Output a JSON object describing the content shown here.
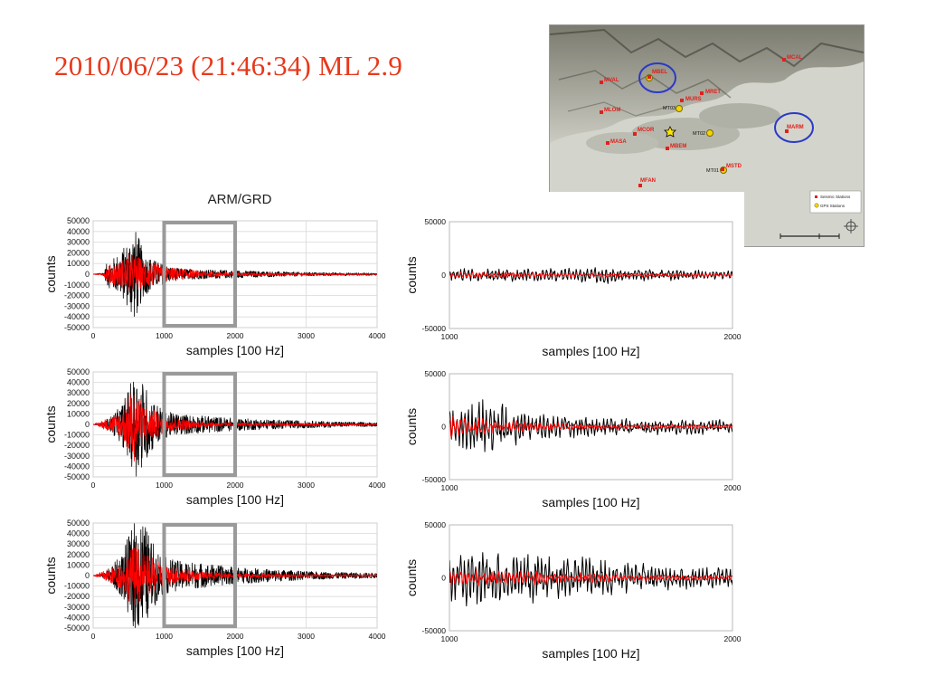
{
  "slide": {
    "title": "2010/06/23 (21:46:34) ML 2.9"
  },
  "map": {
    "stations": [
      {
        "id": "MBEL"
      },
      {
        "id": "MVAL"
      },
      {
        "id": "MLOM"
      },
      {
        "id": "MURS"
      },
      {
        "id": "MRET"
      },
      {
        "id": "MT03"
      },
      {
        "id": "MCOR"
      },
      {
        "id": "MASA"
      },
      {
        "id": "MBEM"
      },
      {
        "id": "MT02"
      },
      {
        "id": "MSTD"
      },
      {
        "id": "MT01"
      },
      {
        "id": "MFAN"
      },
      {
        "id": "MARM"
      },
      {
        "id": "MCAL"
      }
    ],
    "legend": {
      "seismic": "Seismic Stations",
      "gps": "GPS Stations"
    },
    "colors": {
      "seismic": "#e0201c",
      "gps": "#f2d600",
      "circle": "#2a39c8",
      "epicenter": "#ffe600"
    }
  },
  "chart_data": [
    {
      "type": "line",
      "panel": "left-1",
      "title": "ARM/GRD",
      "xlabel": "samples [100 Hz]",
      "ylabel": "counts",
      "xlim": [
        0,
        4000
      ],
      "ylim": [
        -50000,
        50000
      ],
      "xticks": [
        0,
        1000,
        2000,
        3000,
        4000
      ],
      "yticks": [
        50000,
        40000,
        30000,
        20000,
        10000,
        0,
        -10000,
        -20000,
        -30000,
        -40000,
        -50000
      ],
      "ytick_labels": [
        "50000",
        "40000",
        "30000",
        "20000",
        "10000",
        "0",
        "-10000",
        "-20000",
        "-30000",
        "-40000",
        "-50000"
      ],
      "highlight_window": [
        1000,
        2000
      ],
      "series": [
        {
          "color": "#000000",
          "envelope": [
            [
              0,
              0
            ],
            [
              150,
              1500
            ],
            [
              200,
              12000
            ],
            [
              300,
              16000
            ],
            [
              400,
              22000
            ],
            [
              500,
              33000
            ],
            [
              560,
              45000
            ],
            [
              620,
              40000
            ],
            [
              700,
              22000
            ],
            [
              800,
              16000
            ],
            [
              900,
              12000
            ],
            [
              1000,
              9000
            ],
            [
              1200,
              5500
            ],
            [
              1500,
              4500
            ],
            [
              2000,
              3500
            ],
            [
              2500,
              2500
            ],
            [
              3000,
              1800
            ],
            [
              3500,
              1300
            ],
            [
              4000,
              1000
            ]
          ]
        },
        {
          "color": "#ff0000",
          "envelope": [
            [
              0,
              0
            ],
            [
              150,
              1500
            ],
            [
              200,
              8000
            ],
            [
              400,
              13000
            ],
            [
              520,
              20000
            ],
            [
              600,
              18000
            ],
            [
              700,
              14000
            ],
            [
              800,
              12000
            ],
            [
              1000,
              7000
            ],
            [
              1500,
              3000
            ],
            [
              2000,
              1500
            ],
            [
              3000,
              900
            ],
            [
              4000,
              700
            ]
          ]
        }
      ]
    },
    {
      "type": "line",
      "panel": "left-2",
      "xlabel": "samples [100 Hz]",
      "ylabel": "counts",
      "xlim": [
        0,
        4000
      ],
      "ylim": [
        -50000,
        50000
      ],
      "xticks": [
        0,
        1000,
        2000,
        3000,
        4000
      ],
      "yticks": [
        50000,
        40000,
        30000,
        20000,
        10000,
        0,
        -10000,
        -20000,
        -30000,
        -40000,
        -50000
      ],
      "ytick_labels": [
        "50000",
        "40000",
        "30000",
        "20000",
        "10000",
        "0",
        "-10000",
        "-20000",
        "-30000",
        "-40000",
        "-50000"
      ],
      "highlight_window": [
        1000,
        2000
      ],
      "series": [
        {
          "color": "#000000",
          "envelope": [
            [
              0,
              0
            ],
            [
              150,
              2000
            ],
            [
              250,
              8000
            ],
            [
              400,
              18000
            ],
            [
              500,
              35000
            ],
            [
              600,
              50000
            ],
            [
              700,
              42000
            ],
            [
              800,
              28000
            ],
            [
              900,
              20000
            ],
            [
              1000,
              13000
            ],
            [
              1200,
              10000
            ],
            [
              1500,
              8500
            ],
            [
              2000,
              6000
            ],
            [
              2500,
              4500
            ],
            [
              3000,
              3500
            ],
            [
              3500,
              2500
            ],
            [
              4000,
              1800
            ]
          ]
        },
        {
          "color": "#ff0000",
          "envelope": [
            [
              0,
              0
            ],
            [
              200,
              6000
            ],
            [
              400,
              12000
            ],
            [
              500,
              28000
            ],
            [
              580,
              36000
            ],
            [
              700,
              20000
            ],
            [
              900,
              12000
            ],
            [
              1000,
              8000
            ],
            [
              1500,
              2500
            ],
            [
              2000,
              1500
            ],
            [
              3000,
              1000
            ],
            [
              4000,
              700
            ]
          ]
        }
      ]
    },
    {
      "type": "line",
      "panel": "left-3",
      "xlabel": "samples [100 Hz]",
      "ylabel": "counts",
      "xlim": [
        0,
        4000
      ],
      "ylim": [
        -50000,
        50000
      ],
      "xticks": [
        0,
        1000,
        2000,
        3000,
        4000
      ],
      "yticks": [
        50000,
        40000,
        30000,
        20000,
        10000,
        0,
        -10000,
        -20000,
        -30000,
        -40000,
        -50000
      ],
      "ytick_labels": [
        "50000",
        "40000",
        "30000",
        "20000",
        "10000",
        "0",
        "-10000",
        "-20000",
        "-30000",
        "-40000",
        "-50000"
      ],
      "highlight_window": [
        1000,
        2000
      ],
      "series": [
        {
          "color": "#000000",
          "envelope": [
            [
              0,
              0
            ],
            [
              150,
              2000
            ],
            [
              250,
              9000
            ],
            [
              400,
              20000
            ],
            [
              500,
              38000
            ],
            [
              600,
              55000
            ],
            [
              700,
              55000
            ],
            [
              800,
              36000
            ],
            [
              900,
              26000
            ],
            [
              1000,
              18000
            ],
            [
              1200,
              14000
            ],
            [
              1500,
              12000
            ],
            [
              2000,
              8000
            ],
            [
              2500,
              6000
            ],
            [
              3000,
              4000
            ],
            [
              3500,
              3000
            ],
            [
              4000,
              2500
            ]
          ]
        },
        {
          "color": "#ff0000",
          "envelope": [
            [
              0,
              0
            ],
            [
              200,
              6000
            ],
            [
              400,
              13000
            ],
            [
              500,
              24000
            ],
            [
              600,
              30000
            ],
            [
              700,
              22000
            ],
            [
              900,
              14000
            ],
            [
              1000,
              10000
            ],
            [
              1500,
              4000
            ],
            [
              2000,
              2000
            ],
            [
              3000,
              1200
            ],
            [
              4000,
              800
            ]
          ]
        }
      ]
    },
    {
      "type": "line",
      "panel": "right-1",
      "xlabel": "samples [100 Hz]",
      "ylabel": "counts",
      "xlim": [
        1000,
        2000
      ],
      "ylim": [
        -50000,
        50000
      ],
      "xticks": [
        1000,
        2000
      ],
      "yticks": [
        50000,
        0,
        -50000
      ],
      "ytick_labels": [
        "50000",
        "0",
        "-50000"
      ],
      "series": [
        {
          "color": "#000000",
          "envelope": [
            [
              1000,
              7000
            ],
            [
              1300,
              6000
            ],
            [
              1500,
              7500
            ],
            [
              1550,
              12000
            ],
            [
              1600,
              6000
            ],
            [
              2000,
              4500
            ]
          ]
        },
        {
          "color": "#ff0000",
          "envelope": [
            [
              1000,
              3000
            ],
            [
              1500,
              2000
            ],
            [
              2000,
              1500
            ]
          ]
        }
      ]
    },
    {
      "type": "line",
      "panel": "right-2",
      "xlabel": "samples [100 Hz]",
      "ylabel": "counts",
      "xlim": [
        1000,
        2000
      ],
      "ylim": [
        -50000,
        50000
      ],
      "xticks": [
        1000,
        2000
      ],
      "yticks": [
        50000,
        0,
        -50000
      ],
      "ytick_labels": [
        "50000",
        "0",
        "-50000"
      ],
      "series": [
        {
          "color": "#000000",
          "envelope": [
            [
              1000,
              18000
            ],
            [
              1150,
              28000
            ],
            [
              1300,
              14000
            ],
            [
              1500,
              10000
            ],
            [
              1700,
              9000
            ],
            [
              2000,
              7000
            ]
          ]
        },
        {
          "color": "#ff0000",
          "envelope": [
            [
              1000,
              12000
            ],
            [
              1100,
              9000
            ],
            [
              1300,
              5000
            ],
            [
              1500,
              3000
            ],
            [
              2000,
              2000
            ]
          ]
        }
      ]
    },
    {
      "type": "line",
      "panel": "right-3",
      "xlabel": "samples [100 Hz]",
      "ylabel": "counts",
      "xlim": [
        1000,
        2000
      ],
      "ylim": [
        -50000,
        50000
      ],
      "xticks": [
        1000,
        2000
      ],
      "yticks": [
        50000,
        0,
        -50000
      ],
      "ytick_labels": [
        "50000",
        "0",
        "-50000"
      ],
      "series": [
        {
          "color": "#000000",
          "envelope": [
            [
              1000,
              22000
            ],
            [
              1100,
              32000
            ],
            [
              1300,
              25000
            ],
            [
              1500,
              20000
            ],
            [
              1700,
              14000
            ],
            [
              2000,
              9000
            ]
          ]
        },
        {
          "color": "#ff0000",
          "envelope": [
            [
              1000,
              9000
            ],
            [
              1200,
              8000
            ],
            [
              1400,
              6000
            ],
            [
              1600,
              3500
            ],
            [
              2000,
              2000
            ]
          ]
        }
      ]
    }
  ]
}
